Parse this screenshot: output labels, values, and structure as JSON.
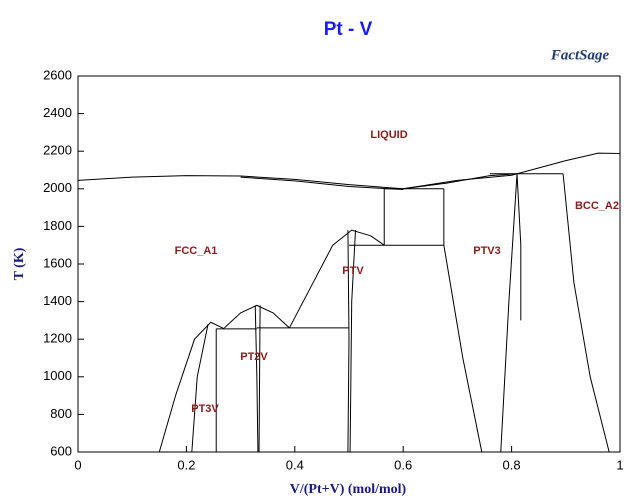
{
  "chart_data": {
    "type": "line",
    "title": "Pt - V",
    "logo": "FactSage",
    "x_label": "V/(Pt+V) (mol/mol)",
    "y_label": "T (K)",
    "xlim": [
      0,
      1
    ],
    "ylim": [
      600,
      2600
    ],
    "xticks": [
      0,
      0.2,
      0.4,
      0.6,
      0.8,
      1
    ],
    "yticks": [
      600,
      800,
      1000,
      1200,
      1400,
      1600,
      1800,
      2000,
      2200,
      2400,
      2600
    ],
    "annotations": [
      "LIQUID",
      "FCC_A1",
      "PT3V",
      "PT2V",
      "PTV",
      "PTV3",
      "BCC_A2"
    ],
    "series": [
      {
        "color": "#000000",
        "x": [
          0,
          0.1,
          0.2,
          0.3,
          0.4,
          0.5,
          0.6
        ],
        "values": [
          2045,
          2062,
          2070,
          2068,
          2050,
          2022,
          2000
        ]
      },
      {
        "color": "#000000",
        "x": [
          0.3,
          0.4,
          0.5,
          0.6
        ],
        "values": [
          2062,
          2042,
          2012,
          1996
        ]
      },
      {
        "color": "#000000",
        "x": [
          0.6,
          0.7,
          0.8,
          0.9,
          0.96,
          1
        ],
        "values": [
          2000,
          2045,
          2072,
          2150,
          2190,
          2188
        ]
      },
      {
        "color": "#000000",
        "x": [
          0.6,
          0.68,
          0.76,
          0.81
        ],
        "values": [
          2000,
          2030,
          2070,
          2080
        ]
      },
      {
        "color": "#000000",
        "x": [
          0.76,
          0.895
        ],
        "values": [
          2080,
          2080
        ]
      },
      {
        "color": "#000000",
        "x": [
          0.895,
          0.915,
          0.945,
          0.98
        ],
        "values": [
          2080,
          1500,
          1000,
          600
        ]
      },
      {
        "color": "#000000",
        "x": [
          0.81,
          0.795,
          0.78
        ],
        "values": [
          2080,
          1400,
          600
        ]
      },
      {
        "color": "#000000",
        "x": [
          0.81,
          0.817,
          0.817
        ],
        "values": [
          2080,
          1700,
          1300
        ]
      },
      {
        "color": "#000000",
        "x": [
          0.675,
          0.675,
          0.71,
          0.745
        ],
        "values": [
          2000,
          1700,
          1100,
          600
        ]
      },
      {
        "color": "#000000",
        "x": [
          0.565,
          0.675
        ],
        "values": [
          2000,
          2000
        ]
      },
      {
        "color": "#000000",
        "x": [
          0.5,
          0.675
        ],
        "values": [
          1700,
          1700
        ]
      },
      {
        "color": "#000000",
        "x": [
          0.565,
          0.565
        ],
        "values": [
          2000,
          1700
        ]
      },
      {
        "color": "#000000",
        "x": [
          0.39,
          0.43,
          0.47,
          0.505,
          0.54,
          0.565
        ],
        "values": [
          1260,
          1480,
          1700,
          1780,
          1750,
          1700
        ]
      },
      {
        "color": "#000000",
        "x": [
          0.498,
          0.5,
          0.498
        ],
        "values": [
          1780,
          1200,
          600
        ]
      },
      {
        "color": "#000000",
        "x": [
          0.512,
          0.505,
          0.502
        ],
        "values": [
          1780,
          1400,
          600
        ]
      },
      {
        "color": "#000000",
        "x": [
          0.33,
          0.5
        ],
        "values": [
          1260,
          1260
        ]
      },
      {
        "color": "#000000",
        "x": [
          0.27,
          0.3,
          0.33,
          0.36,
          0.39
        ],
        "values": [
          1260,
          1340,
          1380,
          1340,
          1260
        ]
      },
      {
        "color": "#000000",
        "x": [
          0.327,
          0.33,
          0.332
        ],
        "values": [
          1380,
          1000,
          600
        ]
      },
      {
        "color": "#000000",
        "x": [
          0.336,
          0.335,
          0.334
        ],
        "values": [
          1380,
          1000,
          600
        ]
      },
      {
        "color": "#000000",
        "x": [
          0.255,
          0.33
        ],
        "values": [
          1255,
          1255
        ]
      },
      {
        "color": "#000000",
        "x": [
          0.15,
          0.18,
          0.215,
          0.245,
          0.27
        ],
        "values": [
          600,
          900,
          1200,
          1290,
          1255
        ]
      },
      {
        "color": "#000000",
        "x": [
          0.21,
          0.22,
          0.24
        ],
        "values": [
          600,
          1000,
          1280
        ]
      },
      {
        "color": "#000000",
        "x": [
          0.255,
          0.255
        ],
        "values": [
          1255,
          600
        ]
      }
    ]
  }
}
